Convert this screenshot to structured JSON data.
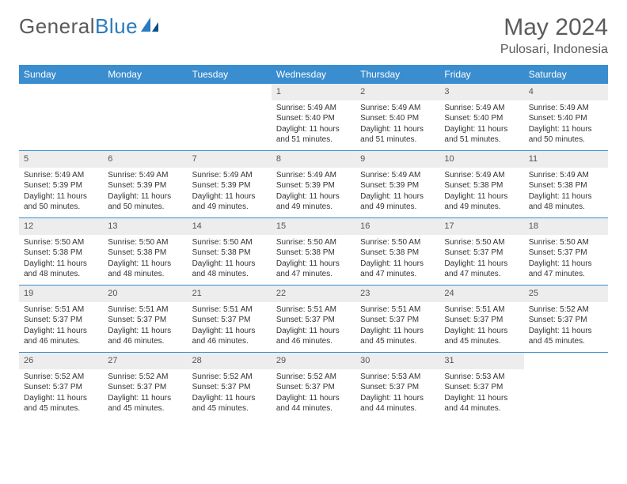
{
  "brand": {
    "name1": "General",
    "name2": "Blue"
  },
  "title": "May 2024",
  "location": "Pulosari, Indonesia",
  "colors": {
    "header_bg": "#3a8dce",
    "header_text": "#ffffff",
    "daynum_bg": "#ededed",
    "text": "#333333",
    "brand_gray": "#5b5b5b",
    "brand_blue": "#2a7bbf"
  },
  "weekdays": [
    "Sunday",
    "Monday",
    "Tuesday",
    "Wednesday",
    "Thursday",
    "Friday",
    "Saturday"
  ],
  "cells": [
    {
      "day": "",
      "empty": true
    },
    {
      "day": "",
      "empty": true
    },
    {
      "day": "",
      "empty": true
    },
    {
      "day": "1",
      "sunrise": "Sunrise: 5:49 AM",
      "sunset": "Sunset: 5:40 PM",
      "daylight": "Daylight: 11 hours and 51 minutes."
    },
    {
      "day": "2",
      "sunrise": "Sunrise: 5:49 AM",
      "sunset": "Sunset: 5:40 PM",
      "daylight": "Daylight: 11 hours and 51 minutes."
    },
    {
      "day": "3",
      "sunrise": "Sunrise: 5:49 AM",
      "sunset": "Sunset: 5:40 PM",
      "daylight": "Daylight: 11 hours and 51 minutes."
    },
    {
      "day": "4",
      "sunrise": "Sunrise: 5:49 AM",
      "sunset": "Sunset: 5:40 PM",
      "daylight": "Daylight: 11 hours and 50 minutes."
    },
    {
      "day": "5",
      "sunrise": "Sunrise: 5:49 AM",
      "sunset": "Sunset: 5:39 PM",
      "daylight": "Daylight: 11 hours and 50 minutes."
    },
    {
      "day": "6",
      "sunrise": "Sunrise: 5:49 AM",
      "sunset": "Sunset: 5:39 PM",
      "daylight": "Daylight: 11 hours and 50 minutes."
    },
    {
      "day": "7",
      "sunrise": "Sunrise: 5:49 AM",
      "sunset": "Sunset: 5:39 PM",
      "daylight": "Daylight: 11 hours and 49 minutes."
    },
    {
      "day": "8",
      "sunrise": "Sunrise: 5:49 AM",
      "sunset": "Sunset: 5:39 PM",
      "daylight": "Daylight: 11 hours and 49 minutes."
    },
    {
      "day": "9",
      "sunrise": "Sunrise: 5:49 AM",
      "sunset": "Sunset: 5:39 PM",
      "daylight": "Daylight: 11 hours and 49 minutes."
    },
    {
      "day": "10",
      "sunrise": "Sunrise: 5:49 AM",
      "sunset": "Sunset: 5:38 PM",
      "daylight": "Daylight: 11 hours and 49 minutes."
    },
    {
      "day": "11",
      "sunrise": "Sunrise: 5:49 AM",
      "sunset": "Sunset: 5:38 PM",
      "daylight": "Daylight: 11 hours and 48 minutes."
    },
    {
      "day": "12",
      "sunrise": "Sunrise: 5:50 AM",
      "sunset": "Sunset: 5:38 PM",
      "daylight": "Daylight: 11 hours and 48 minutes."
    },
    {
      "day": "13",
      "sunrise": "Sunrise: 5:50 AM",
      "sunset": "Sunset: 5:38 PM",
      "daylight": "Daylight: 11 hours and 48 minutes."
    },
    {
      "day": "14",
      "sunrise": "Sunrise: 5:50 AM",
      "sunset": "Sunset: 5:38 PM",
      "daylight": "Daylight: 11 hours and 48 minutes."
    },
    {
      "day": "15",
      "sunrise": "Sunrise: 5:50 AM",
      "sunset": "Sunset: 5:38 PM",
      "daylight": "Daylight: 11 hours and 47 minutes."
    },
    {
      "day": "16",
      "sunrise": "Sunrise: 5:50 AM",
      "sunset": "Sunset: 5:38 PM",
      "daylight": "Daylight: 11 hours and 47 minutes."
    },
    {
      "day": "17",
      "sunrise": "Sunrise: 5:50 AM",
      "sunset": "Sunset: 5:37 PM",
      "daylight": "Daylight: 11 hours and 47 minutes."
    },
    {
      "day": "18",
      "sunrise": "Sunrise: 5:50 AM",
      "sunset": "Sunset: 5:37 PM",
      "daylight": "Daylight: 11 hours and 47 minutes."
    },
    {
      "day": "19",
      "sunrise": "Sunrise: 5:51 AM",
      "sunset": "Sunset: 5:37 PM",
      "daylight": "Daylight: 11 hours and 46 minutes."
    },
    {
      "day": "20",
      "sunrise": "Sunrise: 5:51 AM",
      "sunset": "Sunset: 5:37 PM",
      "daylight": "Daylight: 11 hours and 46 minutes."
    },
    {
      "day": "21",
      "sunrise": "Sunrise: 5:51 AM",
      "sunset": "Sunset: 5:37 PM",
      "daylight": "Daylight: 11 hours and 46 minutes."
    },
    {
      "day": "22",
      "sunrise": "Sunrise: 5:51 AM",
      "sunset": "Sunset: 5:37 PM",
      "daylight": "Daylight: 11 hours and 46 minutes."
    },
    {
      "day": "23",
      "sunrise": "Sunrise: 5:51 AM",
      "sunset": "Sunset: 5:37 PM",
      "daylight": "Daylight: 11 hours and 45 minutes."
    },
    {
      "day": "24",
      "sunrise": "Sunrise: 5:51 AM",
      "sunset": "Sunset: 5:37 PM",
      "daylight": "Daylight: 11 hours and 45 minutes."
    },
    {
      "day": "25",
      "sunrise": "Sunrise: 5:52 AM",
      "sunset": "Sunset: 5:37 PM",
      "daylight": "Daylight: 11 hours and 45 minutes."
    },
    {
      "day": "26",
      "sunrise": "Sunrise: 5:52 AM",
      "sunset": "Sunset: 5:37 PM",
      "daylight": "Daylight: 11 hours and 45 minutes."
    },
    {
      "day": "27",
      "sunrise": "Sunrise: 5:52 AM",
      "sunset": "Sunset: 5:37 PM",
      "daylight": "Daylight: 11 hours and 45 minutes."
    },
    {
      "day": "28",
      "sunrise": "Sunrise: 5:52 AM",
      "sunset": "Sunset: 5:37 PM",
      "daylight": "Daylight: 11 hours and 45 minutes."
    },
    {
      "day": "29",
      "sunrise": "Sunrise: 5:52 AM",
      "sunset": "Sunset: 5:37 PM",
      "daylight": "Daylight: 11 hours and 44 minutes."
    },
    {
      "day": "30",
      "sunrise": "Sunrise: 5:53 AM",
      "sunset": "Sunset: 5:37 PM",
      "daylight": "Daylight: 11 hours and 44 minutes."
    },
    {
      "day": "31",
      "sunrise": "Sunrise: 5:53 AM",
      "sunset": "Sunset: 5:37 PM",
      "daylight": "Daylight: 11 hours and 44 minutes."
    },
    {
      "day": "",
      "empty": true
    }
  ]
}
